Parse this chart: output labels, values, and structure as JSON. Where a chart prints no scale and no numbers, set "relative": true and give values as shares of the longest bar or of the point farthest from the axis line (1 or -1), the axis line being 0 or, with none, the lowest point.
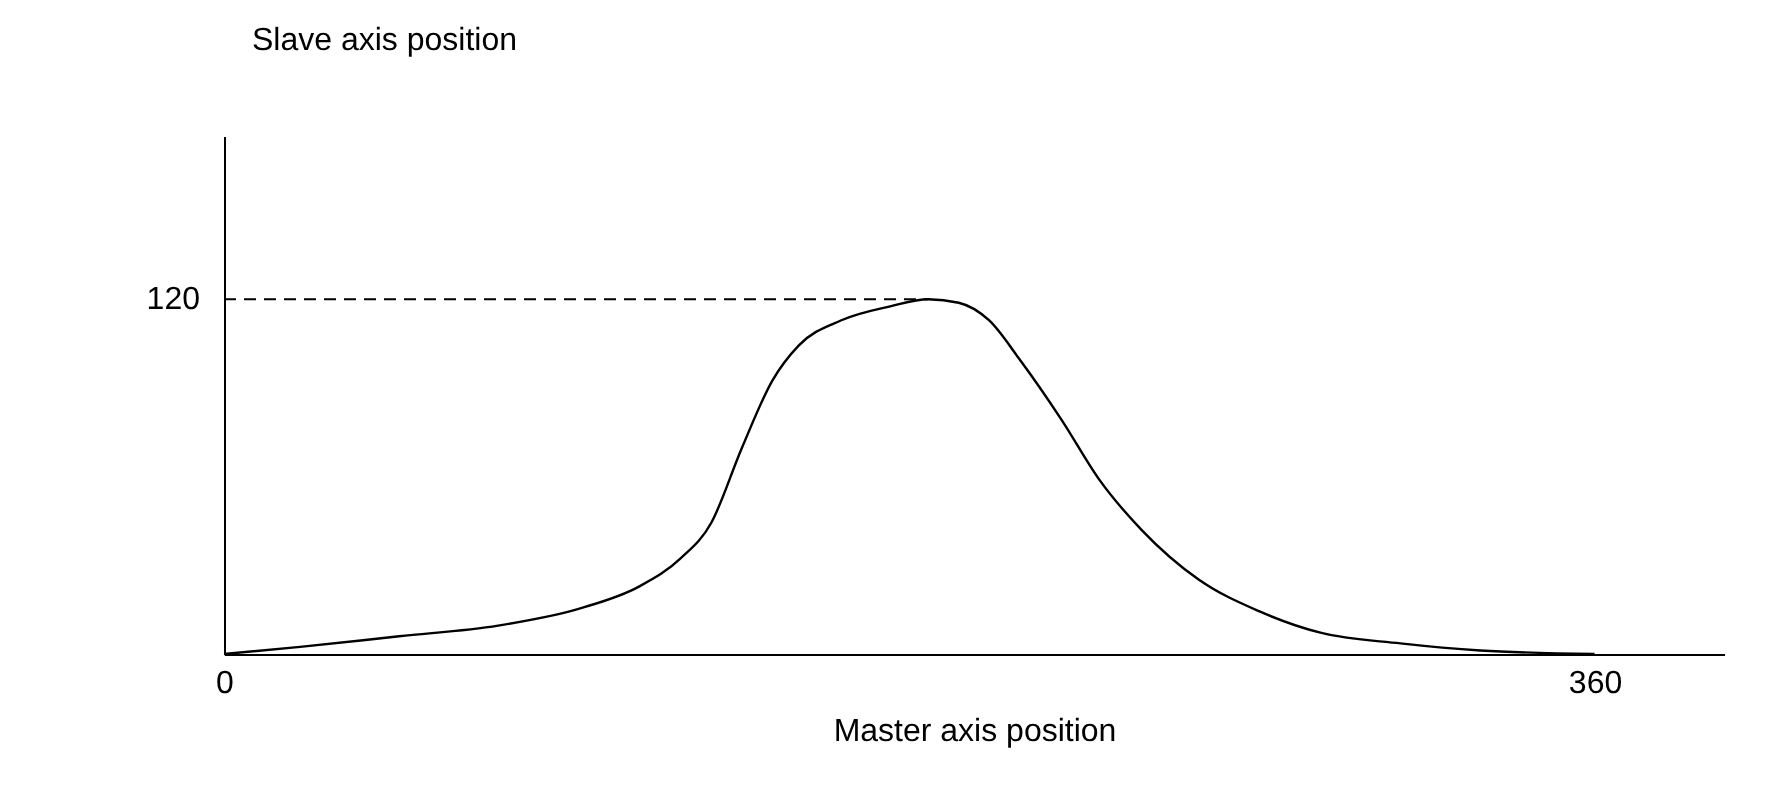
{
  "chart_data": {
    "type": "line",
    "xlabel": "Master axis position",
    "relative": true,
    "x": [
      0,
      20,
      46,
      72,
      94,
      109,
      120,
      128,
      136,
      144,
      151,
      162,
      175,
      185,
      193,
      201,
      209,
      220,
      230,
      241,
      256,
      272,
      288,
      309,
      330,
      360
    ],
    "series": [
      {
        "color": "#000000",
        "values": [
          0,
          0.02,
          0.05,
          0.08,
          0.13,
          0.19,
          0.27,
          0.37,
          0.58,
          0.77,
          0.87,
          0.94,
          0.98,
          1,
          0.99,
          0.94,
          0.83,
          0.66,
          0.49,
          0.35,
          0.21,
          0.12,
          0.06,
          0.03,
          0.01,
          0
        ]
      }
    ],
    "xlim": [
      0,
      394
    ],
    "xticks": [
      0,
      360
    ],
    "grid": false,
    "marker": "none",
    "line_style": "solid",
    "ref_lines": [
      {
        "axis": "y",
        "value": 1,
        "line_style": "dashed",
        "color": "#000000"
      }
    ],
    "annotations": [
      "120",
      "Slave axis position"
    ]
  }
}
